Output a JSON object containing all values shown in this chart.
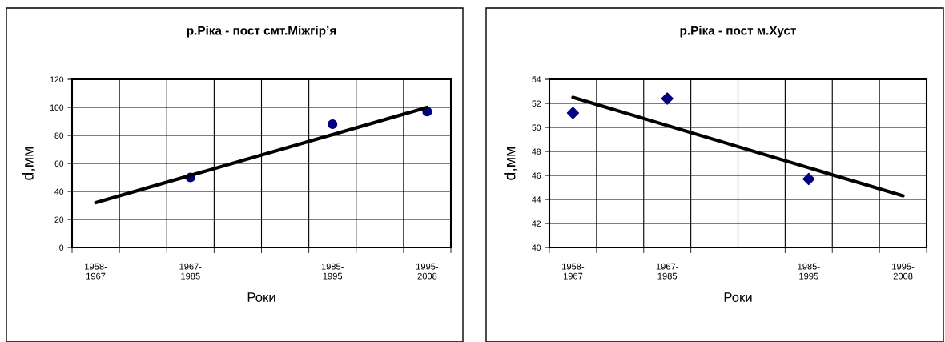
{
  "chart_data": [
    {
      "type": "scatter",
      "title": "р.Ріка - пост смт.Міжгір’я",
      "xlabel": "Роки",
      "ylabel": "d,мм",
      "categories": [
        "1958-\n1967",
        null,
        "1967-\n1985",
        null,
        null,
        "1985-\n1995",
        null,
        "1995-\n2008"
      ],
      "series": [
        {
          "color": "#000080",
          "marker": "circle",
          "values": [
            null,
            null,
            50,
            null,
            null,
            88,
            null,
            97
          ]
        },
        {
          "type": "line",
          "color": "#000000",
          "marker": "none",
          "line_style": "solid",
          "x": [
            "1958-\n1967",
            "1995-\n2008"
          ],
          "values": [
            32,
            100
          ]
        }
      ],
      "ylim": [
        0,
        120
      ],
      "yticks": [
        0,
        20,
        40,
        60,
        80,
        100,
        120
      ],
      "grid": true,
      "legend": false
    },
    {
      "type": "scatter",
      "title": "р.Ріка - пост м.Хуст",
      "xlabel": "Роки",
      "ylabel": "d,мм",
      "categories": [
        "1958-\n1967",
        null,
        "1967-\n1985",
        null,
        null,
        "1985-\n1995",
        null,
        "1995-\n2008"
      ],
      "series": [
        {
          "color": "#000080",
          "marker": "diamond",
          "values": [
            51.2,
            null,
            52.4,
            null,
            null,
            45.7,
            null,
            null
          ]
        },
        {
          "type": "line",
          "color": "#000000",
          "marker": "none",
          "line_style": "solid",
          "x": [
            "1958-\n1967",
            "1995-\n2008"
          ],
          "values": [
            52.5,
            44.3
          ]
        }
      ],
      "ylim": [
        40,
        54
      ],
      "yticks": [
        40,
        42,
        44,
        46,
        48,
        50,
        52,
        54
      ],
      "grid": true,
      "legend": false
    }
  ]
}
